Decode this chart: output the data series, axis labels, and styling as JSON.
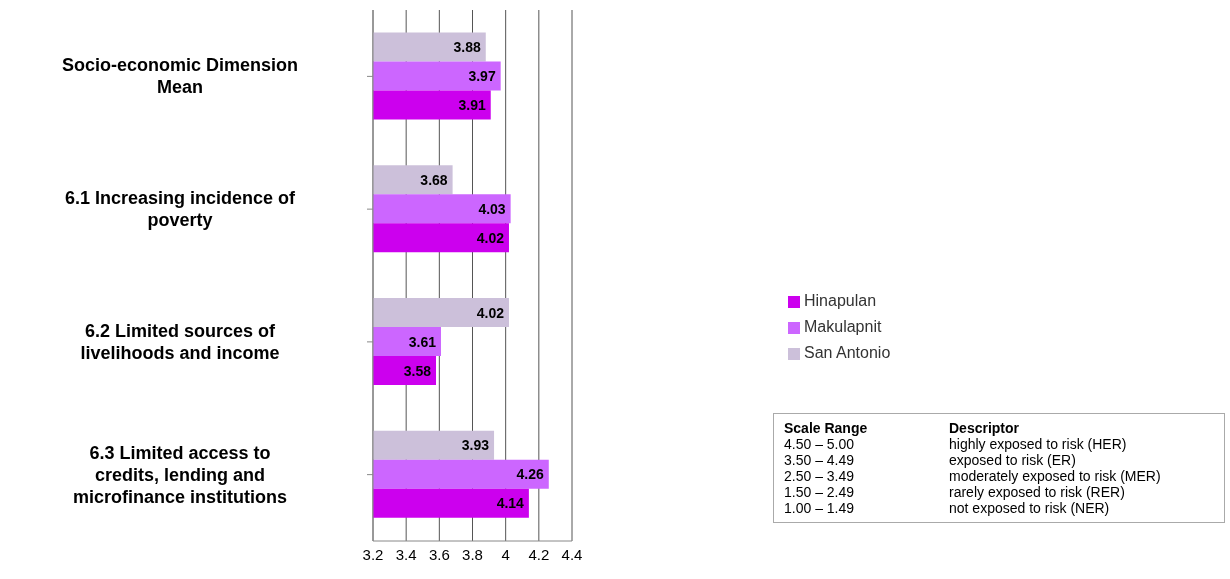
{
  "chart_data": {
    "type": "bar",
    "orientation": "horizontal",
    "categories": [
      "Socio-economic Dimension Mean",
      "6.1 Increasing incidence of poverty",
      "6.2 Limited sources of livelihoods and income",
      "6.3 Limited access to credits, lending and microfinance institutions"
    ],
    "series": [
      {
        "name": "San Antonio",
        "color": "#ccc0da",
        "values": [
          3.88,
          3.68,
          4.02,
          3.93
        ]
      },
      {
        "name": "Makulapnit",
        "color": "#cc66ff",
        "values": [
          3.97,
          4.03,
          3.61,
          4.26
        ]
      },
      {
        "name": "Hinapulan",
        "color": "#cc00ee",
        "values": [
          3.91,
          4.02,
          3.58,
          4.14
        ]
      }
    ],
    "xlim": [
      3.2,
      4.4
    ],
    "xticks": [
      3.2,
      3.4,
      3.6,
      3.8,
      4,
      4.2,
      4.4
    ],
    "grid": "x",
    "legend": "right",
    "data_labels": true,
    "annotations": [
      "Scale Range",
      "Descriptor",
      "4.50 – 5.00",
      "highly exposed to risk (HER)",
      "3.50 – 4.49",
      "exposed to risk (ER)",
      "2.50 – 3.49",
      "moderately exposed to risk (MER)",
      "1.50 – 2.49",
      "rarely exposed to risk (RER)",
      "1.00 – 1.49",
      "not exposed to risk (NER)"
    ]
  }
}
